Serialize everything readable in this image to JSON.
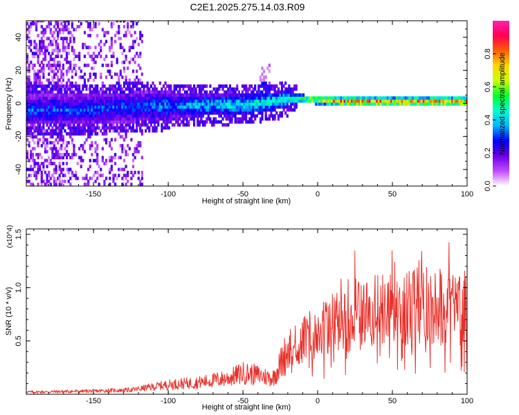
{
  "figure": {
    "title": "C2E1.2025.275.14.03.R09"
  },
  "chart_data": [
    {
      "type": "heatmap",
      "title": "C2E1.2025.275.14.03.R09",
      "xlabel": "Height of straight line (km)",
      "ylabel": "Frequency (Hz)",
      "xlim": [
        -195,
        100
      ],
      "ylim": [
        -50,
        50
      ],
      "xticks": [
        -150,
        -100,
        -50,
        0,
        50,
        100
      ],
      "yticks": [
        -40,
        -20,
        0,
        20,
        40
      ],
      "colorbar": {
        "label": "Normalized spectral amplitude",
        "range": [
          0,
          1
        ],
        "ticks": [
          0.0,
          0.2,
          0.4,
          0.6,
          0.8
        ],
        "tick_labels": [
          "0.0",
          "0.2",
          "0.4",
          "0.6",
          "0.8"
        ],
        "colormap": [
          "#ffffff",
          "#c04cff",
          "#6a00e6",
          "#0000ff",
          "#00b4ff",
          "#00ffd0",
          "#00ff30",
          "#c8ff00",
          "#ffd800",
          "#ff6000",
          "#ff0050",
          "#ff20b0"
        ]
      },
      "ridge": {
        "description_points_height_km": [
          -160,
          -120,
          -80,
          -60,
          -40,
          -30,
          -20,
          0,
          20,
          50,
          100
        ],
        "center_frequency_hz": [
          -5,
          -3,
          -2,
          -2,
          -1,
          0,
          2,
          1,
          0,
          0,
          0
        ]
      }
    },
    {
      "type": "line",
      "xlabel": "Height of straight line (km)",
      "ylabel": "SNR (10 * v/v)",
      "scale_label": "(x10^4)",
      "xlim": [
        -195,
        100
      ],
      "ylim": [
        0,
        1.55
      ],
      "xticks": [
        -150,
        -100,
        -50,
        0,
        50,
        100
      ],
      "yticks": [
        0.5,
        1.0,
        1.5
      ],
      "ytick_labels": [
        "0.5",
        "1.0",
        "1.5"
      ],
      "series": [
        {
          "name": "SNR",
          "color": "#e8302a",
          "x": [
            -195,
            -150,
            -125,
            -110,
            -100,
            -80,
            -60,
            -50,
            -40,
            -30,
            -25,
            -20,
            -15,
            -10,
            -5,
            0,
            10,
            20,
            30,
            40,
            50,
            60,
            70,
            80,
            90,
            100
          ],
          "y": [
            0.02,
            0.03,
            0.04,
            0.07,
            0.09,
            0.11,
            0.15,
            0.2,
            0.18,
            0.15,
            0.28,
            0.42,
            0.45,
            0.5,
            0.55,
            0.6,
            0.65,
            0.7,
            0.75,
            0.78,
            0.8,
            0.82,
            0.83,
            0.84,
            0.8,
            0.82
          ]
        }
      ]
    }
  ]
}
